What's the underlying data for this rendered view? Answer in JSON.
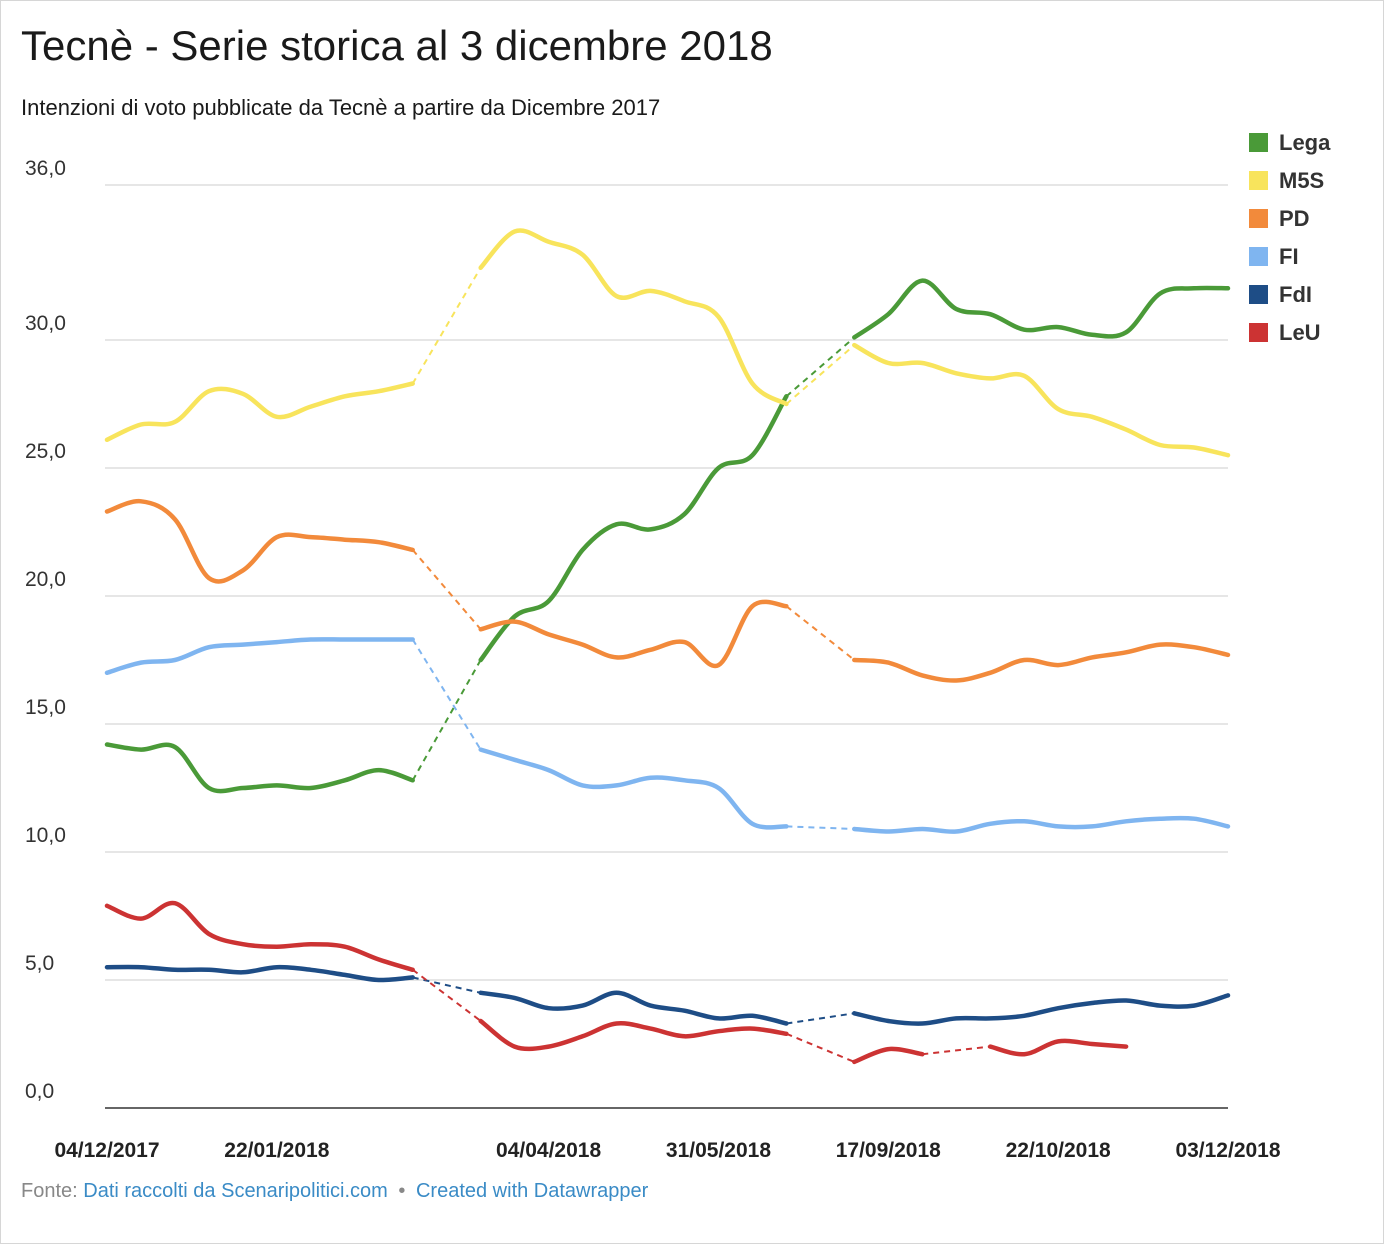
{
  "title": "Tecnè - Serie storica al 3 dicembre 2018",
  "subtitle": "Intenzioni di voto pubblicate da Tecnè a partire da Dicembre 2017",
  "footer": {
    "prefix": "Fonte:",
    "source": "Dati raccolti da Scenaripolitici.com",
    "separator": "•",
    "credit": "Created with Datawrapper"
  },
  "chart_data": {
    "type": "line",
    "ylim": [
      0,
      36
    ],
    "y_ticks": [
      {
        "value": 36,
        "label": "36,0"
      },
      {
        "value": 30,
        "label": "30,0"
      },
      {
        "value": 25,
        "label": "25,0"
      },
      {
        "value": 20,
        "label": "20,0"
      },
      {
        "value": 15,
        "label": "15,0"
      },
      {
        "value": 10,
        "label": "10,0"
      },
      {
        "value": 5,
        "label": "5,0"
      },
      {
        "value": 0,
        "label": "0,0"
      }
    ],
    "x_tick_labels": [
      {
        "index": 0,
        "label": "04/12/2017"
      },
      {
        "index": 5,
        "label": "22/01/2018"
      },
      {
        "index": 13,
        "label": "04/04/2018"
      },
      {
        "index": 18,
        "label": "31/05/2018"
      },
      {
        "index": 23,
        "label": "17/09/2018"
      },
      {
        "index": 28,
        "label": "22/10/2018"
      },
      {
        "index": 33,
        "label": "03/12/2018"
      }
    ],
    "x_count": 34,
    "gaps_dashed": [
      [
        9,
        11
      ],
      [
        21,
        23
      ]
    ],
    "grid": true,
    "legend_position": "top-right",
    "series": [
      {
        "name": "Lega",
        "color": "#4a9a38",
        "values": [
          14.2,
          14.0,
          14.1,
          12.5,
          12.5,
          12.6,
          12.5,
          12.8,
          13.2,
          12.8,
          null,
          17.5,
          19.2,
          19.8,
          21.8,
          22.8,
          22.6,
          23.2,
          25.0,
          25.5,
          27.8,
          null,
          30.1,
          31.0,
          32.3,
          31.2,
          31.0,
          30.4,
          30.5,
          30.2,
          30.3,
          31.8,
          32.0,
          32.0
        ]
      },
      {
        "name": "M5S",
        "color": "#f8e45c",
        "values": [
          26.1,
          26.7,
          26.8,
          28.0,
          27.9,
          27.0,
          27.4,
          27.8,
          28.0,
          28.3,
          null,
          32.8,
          34.2,
          33.8,
          33.3,
          31.7,
          31.9,
          31.5,
          30.9,
          28.3,
          27.5,
          null,
          29.8,
          29.1,
          29.1,
          28.7,
          28.5,
          28.6,
          27.3,
          27.0,
          26.5,
          25.9,
          25.8,
          25.5
        ]
      },
      {
        "name": "PD",
        "color": "#f28a3b",
        "values": [
          23.3,
          23.7,
          23.0,
          20.7,
          21.0,
          22.3,
          22.3,
          22.2,
          22.1,
          21.8,
          null,
          18.7,
          19.0,
          18.5,
          18.1,
          17.6,
          17.9,
          18.2,
          17.3,
          19.6,
          19.6,
          null,
          17.5,
          17.4,
          16.9,
          16.7,
          17.0,
          17.5,
          17.3,
          17.6,
          17.8,
          18.1,
          18.0,
          17.7
        ]
      },
      {
        "name": "FI",
        "color": "#7fb5f0",
        "values": [
          17.0,
          17.4,
          17.5,
          18.0,
          18.1,
          18.2,
          18.3,
          18.3,
          18.3,
          18.3,
          null,
          14.0,
          13.6,
          13.2,
          12.6,
          12.6,
          12.9,
          12.8,
          12.5,
          11.1,
          11.0,
          null,
          10.9,
          10.8,
          10.9,
          10.8,
          11.1,
          11.2,
          11.0,
          11.0,
          11.2,
          11.3,
          11.3,
          11.0
        ]
      },
      {
        "name": "FdI",
        "color": "#1e4d86",
        "values": [
          5.5,
          5.5,
          5.4,
          5.4,
          5.3,
          5.5,
          5.4,
          5.2,
          5.0,
          5.1,
          null,
          4.5,
          4.3,
          3.9,
          4.0,
          4.5,
          4.0,
          3.8,
          3.5,
          3.6,
          3.3,
          null,
          3.7,
          3.4,
          3.3,
          3.5,
          3.5,
          3.6,
          3.9,
          4.1,
          4.2,
          4.0,
          4.0,
          4.4
        ]
      },
      {
        "name": "LeU",
        "color": "#cc3333",
        "values": [
          7.9,
          7.4,
          8.0,
          6.8,
          6.4,
          6.3,
          6.4,
          6.3,
          5.8,
          5.4,
          null,
          3.4,
          2.4,
          2.4,
          2.8,
          3.3,
          3.1,
          2.8,
          3.0,
          3.1,
          2.9,
          null,
          1.8,
          2.3,
          2.1,
          null,
          2.4,
          2.1,
          2.6,
          2.5,
          2.4,
          null,
          null,
          null
        ]
      }
    ]
  }
}
